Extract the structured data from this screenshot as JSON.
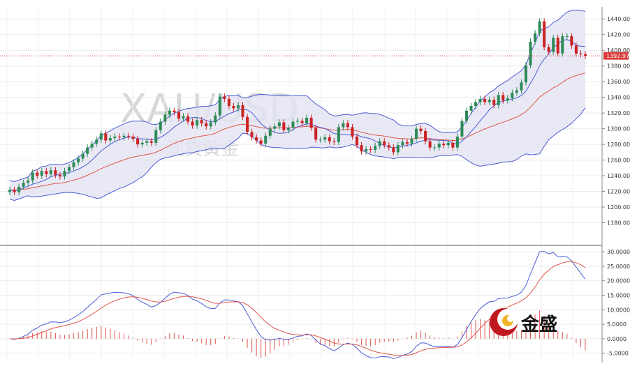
{
  "chart_data": [
    {
      "type": "candlestick",
      "watermark": {
        "symbol": "XAU/USD",
        "subtitle": "现货黄金"
      },
      "ylim": [
        1160,
        1450
      ],
      "y_ticks": [
        1180,
        1200,
        1220,
        1240,
        1260,
        1280,
        1300,
        1320,
        1340,
        1360,
        1380,
        1400,
        1420,
        1440
      ],
      "y_tick_labels": [
        "1180.00",
        "1200.00",
        "1220.00",
        "1240.00",
        "1260.00",
        "1280.00",
        "1300.00",
        "1320.00",
        "1340.00",
        "1360.00",
        "1380.00",
        "1400.00",
        "1420.00",
        "1440.00"
      ],
      "current_price": 1392.97,
      "current_price_label": "1392.97",
      "up_color": "#2e8b57",
      "down_color": "#cc2222",
      "band_fill": "#e3e3f2",
      "band_line_color": "#4a5bd6",
      "ma_color": "#e0554a",
      "grid": true,
      "close": [
        1222,
        1219,
        1226,
        1231,
        1234,
        1244,
        1240,
        1246,
        1242,
        1247,
        1241,
        1239,
        1246,
        1251,
        1257,
        1262,
        1268,
        1276,
        1281,
        1286,
        1294,
        1285,
        1288,
        1290,
        1289,
        1291,
        1290,
        1287,
        1280,
        1282,
        1284,
        1282,
        1298,
        1309,
        1318,
        1323,
        1321,
        1313,
        1316,
        1309,
        1304,
        1311,
        1307,
        1303,
        1308,
        1317,
        1341,
        1338,
        1329,
        1326,
        1330,
        1315,
        1296,
        1289,
        1285,
        1281,
        1291,
        1300,
        1303,
        1308,
        1298,
        1301,
        1309,
        1310,
        1307,
        1314,
        1301,
        1286,
        1286,
        1289,
        1284,
        1283,
        1302,
        1307,
        1302,
        1290,
        1279,
        1271,
        1274,
        1273,
        1278,
        1284,
        1279,
        1276,
        1270,
        1279,
        1283,
        1281,
        1287,
        1300,
        1297,
        1284,
        1276,
        1276,
        1281,
        1279,
        1282,
        1276,
        1290,
        1310,
        1323,
        1329,
        1334,
        1338,
        1334,
        1337,
        1330,
        1343,
        1336,
        1339,
        1346,
        1349,
        1359,
        1381,
        1411,
        1422,
        1437,
        1404,
        1398,
        1416,
        1396,
        1418,
        1418,
        1406,
        1396,
        1395,
        1392.97
      ],
      "candle_body": 4.5,
      "candle_wick": 4,
      "bollinger_period": 20,
      "bollinger_k": 2
    },
    {
      "type": "macd",
      "ylim": [
        -7,
        31
      ],
      "y_ticks": [
        -5,
        0,
        5,
        10,
        15,
        20,
        25,
        30
      ],
      "y_tick_labels": [
        "-5.0000",
        "0.0000",
        "5.0000",
        "10.0000",
        "15.0000",
        "20.0000",
        "25.0000",
        "30.0000"
      ],
      "line_color": "#4a5bd6",
      "signal_color": "#e0554a",
      "hist_color": "#e0554a",
      "fast": 12,
      "slow": 26,
      "signal": 9
    }
  ],
  "logo": {
    "text": "金盛",
    "icon": "jinsheng-logo-icon"
  }
}
